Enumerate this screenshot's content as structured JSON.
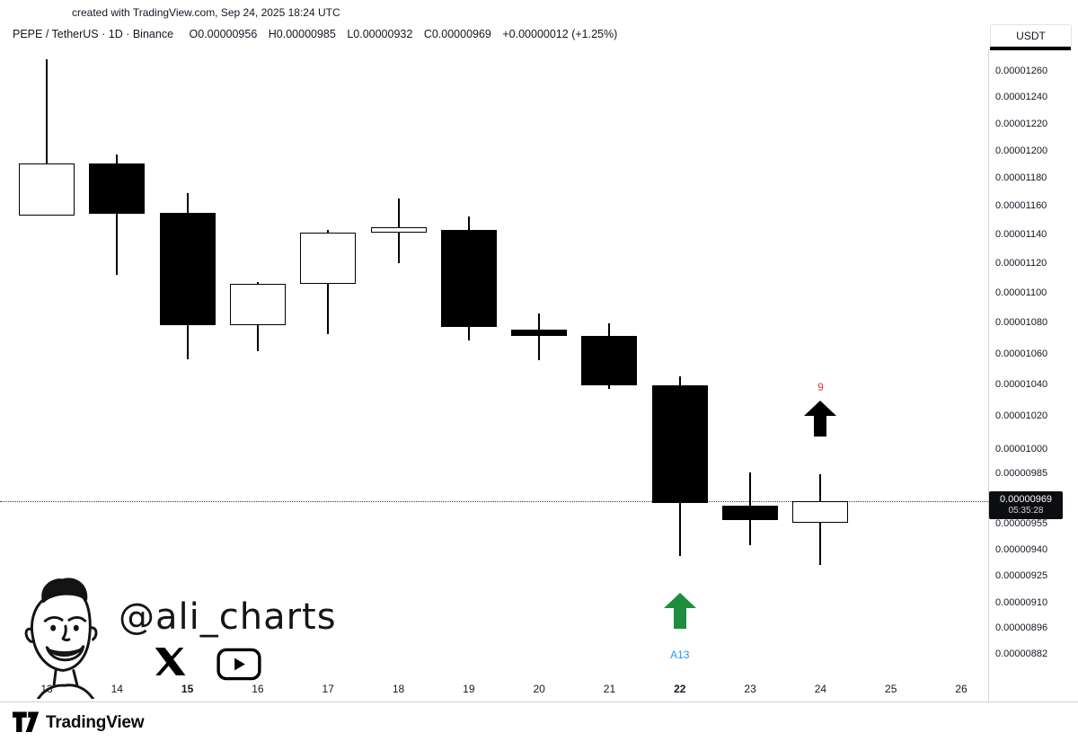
{
  "header": {
    "created_line": "created with TradingView.com, Sep 24, 2025 18:24 UTC",
    "symbol": {
      "title": "PEPE / TetherUS · 1D · Binance",
      "open_label": "O0.00000956",
      "high_label": "H0.00000985",
      "low_label": "L0.00000932",
      "close_label": "C0.00000969",
      "change_label": "+0.00000012 (+1.25%)"
    },
    "currency_button": "USDT"
  },
  "chart_data": {
    "type": "candlestick",
    "symbol": "PEPE / TetherUS",
    "interval": "1D",
    "exchange": "Binance",
    "scale": "log",
    "price_axis_ticks": [
      "0.00001260",
      "0.00001240",
      "0.00001220",
      "0.00001200",
      "0.00001180",
      "0.00001160",
      "0.00001140",
      "0.00001120",
      "0.00001100",
      "0.00001080",
      "0.00001060",
      "0.00001040",
      "0.00001020",
      "0.00001000",
      "0.00000985",
      "0.00000955",
      "0.00000940",
      "0.00000925",
      "0.00000910",
      "0.00000896",
      "0.00000882"
    ],
    "time_axis_labels": [
      {
        "label": "13",
        "bold": false
      },
      {
        "label": "14",
        "bold": false
      },
      {
        "label": "15",
        "bold": true
      },
      {
        "label": "16",
        "bold": false
      },
      {
        "label": "17",
        "bold": false
      },
      {
        "label": "18",
        "bold": false
      },
      {
        "label": "19",
        "bold": false
      },
      {
        "label": "20",
        "bold": false
      },
      {
        "label": "21",
        "bold": false
      },
      {
        "label": "22",
        "bold": true
      },
      {
        "label": "23",
        "bold": false
      },
      {
        "label": "24",
        "bold": false
      },
      {
        "label": "25",
        "bold": false
      },
      {
        "label": "26",
        "bold": false
      }
    ],
    "candles": [
      {
        "date": "13",
        "open": 1.154e-05,
        "high": 1.27e-05,
        "low": 1.154e-05,
        "close": 1.191e-05,
        "direction": "up"
      },
      {
        "date": "14",
        "open": 1.191e-05,
        "high": 1.198e-05,
        "low": 1.113e-05,
        "close": 1.155e-05,
        "direction": "down"
      },
      {
        "date": "15",
        "open": 1.156e-05,
        "high": 1.17e-05,
        "low": 1.057e-05,
        "close": 1.079e-05,
        "direction": "down"
      },
      {
        "date": "16",
        "open": 1.079e-05,
        "high": 1.108e-05,
        "low": 1.062e-05,
        "close": 1.107e-05,
        "direction": "up"
      },
      {
        "date": "17",
        "open": 1.107e-05,
        "high": 1.144e-05,
        "low": 1.073e-05,
        "close": 1.142e-05,
        "direction": "up"
      },
      {
        "date": "18",
        "open": 1.142e-05,
        "high": 1.166e-05,
        "low": 1.121e-05,
        "close": 1.146e-05,
        "direction": "up"
      },
      {
        "date": "19",
        "open": 1.144e-05,
        "high": 1.153e-05,
        "low": 1.069e-05,
        "close": 1.078e-05,
        "direction": "down"
      },
      {
        "date": "20",
        "open": 1.076e-05,
        "high": 1.087e-05,
        "low": 1.056e-05,
        "close": 1.072e-05,
        "direction": "down"
      },
      {
        "date": "21",
        "open": 1.072e-05,
        "high": 1.08e-05,
        "low": 1.038e-05,
        "close": 1.04e-05,
        "direction": "down"
      },
      {
        "date": "22",
        "open": 1.04e-05,
        "high": 1.046e-05,
        "low": 9.37e-06,
        "close": 9.68e-06,
        "direction": "down"
      },
      {
        "date": "23",
        "open": 9.66e-06,
        "high": 9.86e-06,
        "low": 9.43e-06,
        "close": 9.58e-06,
        "direction": "down"
      },
      {
        "date": "24",
        "open": 9.56e-06,
        "high": 9.85e-06,
        "low": 9.32e-06,
        "close": 9.69e-06,
        "direction": "up"
      }
    ],
    "last_price_line": 9.69e-06,
    "price_tag": {
      "price": "0.00000969",
      "countdown": "05:35:28"
    },
    "annotations": [
      {
        "type": "arrow-up",
        "date": "22",
        "price": 9.06e-06,
        "color": "#1e8e3e",
        "label": "A13",
        "label_color": "#2196f3",
        "label_position": "below"
      },
      {
        "type": "arrow-up",
        "date": "24",
        "price": 1.019e-05,
        "color": "#000000",
        "label": "9",
        "label_color": "#e53935",
        "label_position": "above"
      }
    ]
  },
  "watermark": {
    "handle": "@ali_charts",
    "icons": [
      "x-logo",
      "youtube-logo"
    ]
  },
  "footer": {
    "brand": "TradingView"
  }
}
